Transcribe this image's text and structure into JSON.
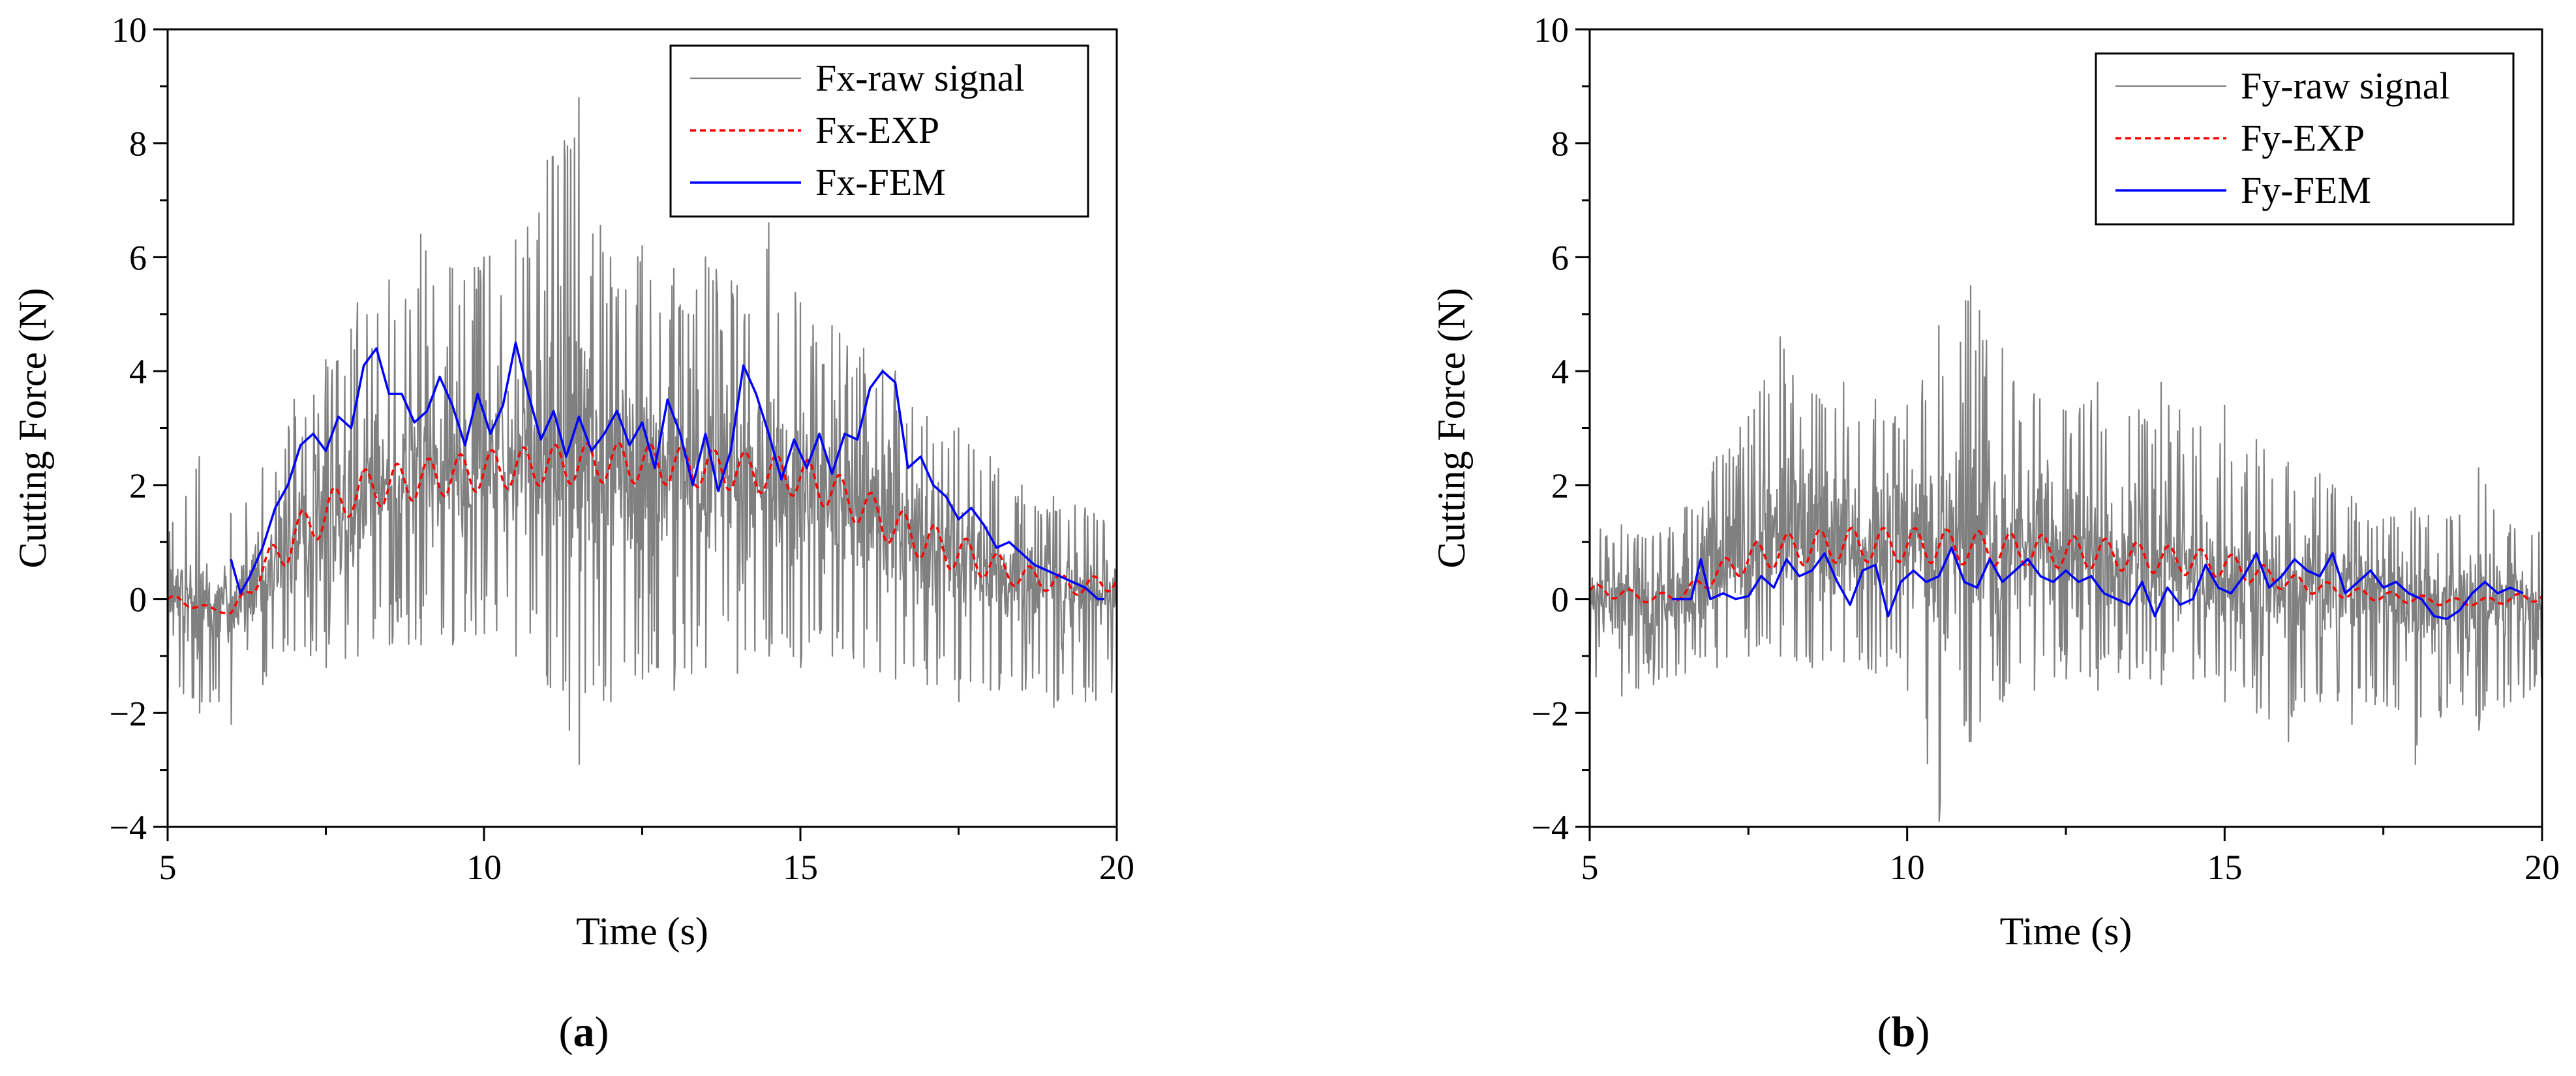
{
  "colors": {
    "raw": "#808080",
    "exp": "#ff0000",
    "fem": "#0000ff",
    "axis": "#000000"
  },
  "chart_data": [
    {
      "id": "a",
      "type": "line",
      "panel_label": "a",
      "xlabel": "Time (s)",
      "ylabel": "Cutting Force (N)",
      "xlim": [
        5,
        20
      ],
      "ylim": [
        -4,
        10
      ],
      "xticks": [
        5,
        10,
        15,
        20
      ],
      "yticks": [
        -4,
        -2,
        0,
        2,
        4,
        6,
        8,
        10
      ],
      "xtick_labels": [
        "5",
        "10",
        "15",
        "20"
      ],
      "ytick_labels": [
        "−4",
        "−2",
        "0",
        "2",
        "4",
        "6",
        "8",
        "10"
      ],
      "legend_position": "top-right",
      "legend": [
        {
          "name": "Fx-raw signal",
          "style": "raw"
        },
        {
          "name": "Fx-EXP",
          "style": "exp"
        },
        {
          "name": "Fx-FEM",
          "style": "fem"
        }
      ],
      "series": [
        {
          "name": "Fx-raw signal",
          "style": "raw",
          "envelope": {
            "t": [
              5,
              5.5,
              6,
              6.5,
              7,
              7.5,
              8,
              8.5,
              9,
              9.5,
              10,
              10.5,
              11,
              11.5,
              12,
              12.5,
              13,
              13.5,
              14,
              14.5,
              15,
              15.5,
              16,
              16.5,
              17,
              17.5,
              18,
              18.5,
              19,
              19.5,
              20
            ],
            "mean": [
              0,
              0,
              -0.1,
              0.3,
              0.9,
              1.4,
              1.8,
              2.0,
              2.2,
              2.2,
              2.3,
              2.4,
              2.5,
              2.5,
              2.4,
              2.3,
              2.2,
              2.2,
              2.2,
              2.0,
              1.9,
              1.7,
              1.5,
              1.3,
              1.0,
              0.8,
              0.5,
              0.3,
              0.2,
              0.1,
              0
            ],
            "upper": [
              1.2,
              2.5,
              1.5,
              2.3,
              3.5,
              4.2,
              5.2,
              5.6,
              6.4,
              5.8,
              6.0,
              6.3,
              7.7,
              8.8,
              6.0,
              6.2,
              5.8,
              6.0,
              5.5,
              6.6,
              5.2,
              4.8,
              4.4,
              4.0,
              3.2,
              3.0,
              2.5,
              2.0,
              1.8,
              1.6,
              1.3
            ],
            "lower": [
              -1.8,
              -2.0,
              -2.2,
              -1.5,
              -0.9,
              -1.2,
              -1.0,
              -0.8,
              -0.8,
              -0.8,
              -0.6,
              -1.0,
              -1.5,
              -2.9,
              -1.8,
              -1.4,
              -1.6,
              -1.2,
              -1.3,
              -1.0,
              -1.2,
              -1.0,
              -1.2,
              -1.4,
              -1.5,
              -1.8,
              -1.6,
              -1.6,
              -1.9,
              -1.8,
              -1.8
            ]
          }
        },
        {
          "name": "Fx-EXP",
          "style": "exp",
          "base": {
            "t": [
              5,
              6,
              6.5,
              7,
              7.5,
              8,
              9,
              10,
              11,
              12,
              13,
              14,
              15,
              15.5,
              16,
              16.5,
              17,
              17.5,
              18,
              18.5,
              19,
              19.5,
              20
            ],
            "y": [
              0,
              -0.25,
              0.5,
              1.1,
              1.5,
              1.9,
              2.1,
              2.25,
              2.35,
              2.4,
              2.35,
              2.25,
              2.15,
              1.9,
              1.6,
              1.25,
              1.0,
              0.8,
              0.6,
              0.4,
              0.3,
              0.2,
              0.35
            ]
          },
          "ripple_amplitude": 0.35,
          "ripple_period_s": 0.5
        },
        {
          "name": "Fx-FEM",
          "style": "fem",
          "t": [
            6.0,
            6.15,
            6.3,
            6.5,
            6.7,
            6.9,
            7.1,
            7.3,
            7.5,
            7.7,
            7.9,
            8.1,
            8.3,
            8.5,
            8.7,
            8.9,
            9.1,
            9.3,
            9.5,
            9.7,
            9.9,
            10.1,
            10.3,
            10.5,
            10.7,
            10.9,
            11.1,
            11.3,
            11.5,
            11.7,
            11.9,
            12.1,
            12.3,
            12.5,
            12.7,
            12.9,
            13.1,
            13.3,
            13.5,
            13.7,
            13.9,
            14.1,
            14.3,
            14.5,
            14.7,
            14.9,
            15.1,
            15.3,
            15.5,
            15.7,
            15.9,
            16.1,
            16.3,
            16.5,
            16.7,
            16.9,
            17.1,
            17.3,
            17.5,
            17.7,
            17.9,
            18.1,
            18.3,
            18.5,
            18.7,
            18.9,
            19.1,
            19.3,
            19.5,
            19.7,
            19.8
          ],
          "y": [
            0.7,
            0.1,
            0.4,
            0.9,
            1.6,
            2.0,
            2.7,
            2.9,
            2.6,
            3.2,
            3.0,
            4.1,
            4.4,
            3.6,
            3.6,
            3.1,
            3.3,
            3.9,
            3.4,
            2.7,
            3.6,
            2.9,
            3.4,
            4.5,
            3.6,
            2.8,
            3.3,
            2.5,
            3.2,
            2.6,
            2.9,
            3.3,
            2.7,
            3.1,
            2.3,
            3.5,
            2.9,
            2.0,
            2.9,
            1.9,
            2.6,
            4.1,
            3.6,
            2.9,
            2.1,
            2.8,
            2.3,
            2.9,
            2.2,
            2.9,
            2.8,
            3.7,
            4.0,
            3.8,
            2.3,
            2.5,
            2.0,
            1.8,
            1.4,
            1.6,
            1.3,
            0.9,
            1.0,
            0.8,
            0.6,
            0.5,
            0.4,
            0.3,
            0.2,
            0.0,
            0.0
          ]
        }
      ]
    },
    {
      "id": "b",
      "type": "line",
      "panel_label": "b",
      "xlabel": "Time (s)",
      "ylabel": "Cutting Force (N)",
      "xlim": [
        5,
        20
      ],
      "ylim": [
        -4,
        10
      ],
      "xticks": [
        5,
        10,
        15,
        20
      ],
      "yticks": [
        -4,
        -2,
        0,
        2,
        4,
        6,
        8,
        10
      ],
      "xtick_labels": [
        "5",
        "10",
        "15",
        "20"
      ],
      "ytick_labels": [
        "−4",
        "−2",
        "0",
        "2",
        "4",
        "6",
        "8",
        "10"
      ],
      "legend_position": "top-right",
      "legend": [
        {
          "name": "Fy-raw signal",
          "style": "raw"
        },
        {
          "name": "Fy-EXP",
          "style": "exp"
        },
        {
          "name": "Fy-FEM",
          "style": "fem"
        }
      ],
      "series": [
        {
          "name": "Fy-raw signal",
          "style": "raw",
          "envelope": {
            "t": [
              5,
              5.5,
              6,
              6.5,
              7,
              7.5,
              8,
              8.5,
              9,
              9.5,
              10,
              10.5,
              11,
              11.5,
              12,
              12.5,
              13,
              13.5,
              14,
              14.5,
              15,
              15.5,
              16,
              16.5,
              17,
              17.5,
              18,
              18.5,
              19,
              19.5,
              20
            ],
            "mean": [
              0,
              0,
              0,
              0.1,
              0.4,
              0.7,
              0.9,
              1.0,
              1.0,
              1.0,
              0.9,
              0.9,
              0.9,
              0.8,
              0.8,
              0.8,
              0.7,
              0.6,
              0.5,
              0.5,
              0.4,
              0.3,
              0.3,
              0.2,
              0.2,
              0.1,
              0.1,
              0.0,
              0.0,
              0.0,
              0.0
            ],
            "upper": [
              1.2,
              1.3,
              1.1,
              1.6,
              2.5,
              3.2,
              4.6,
              3.6,
              3.8,
              3.5,
              3.4,
              4.8,
              5.5,
              4.4,
              3.6,
              3.3,
              3.8,
              3.2,
              3.8,
              3.0,
              3.4,
              2.8,
              2.4,
              2.2,
              1.8,
              1.4,
              1.6,
              1.4,
              2.3,
              1.3,
              1.2
            ],
            "lower": [
              -1.4,
              -1.7,
              -1.5,
              -1.3,
              -1.2,
              -1.0,
              -1.0,
              -1.2,
              -1.1,
              -1.3,
              -1.6,
              -3.9,
              -2.5,
              -1.8,
              -1.6,
              -1.4,
              -1.6,
              -1.4,
              -1.5,
              -1.4,
              -1.8,
              -2.0,
              -2.5,
              -1.8,
              -2.2,
              -1.8,
              -2.9,
              -1.9,
              -2.3,
              -1.8,
              -1.7
            ]
          }
        },
        {
          "name": "Fy-EXP",
          "style": "exp",
          "base": {
            "t": [
              5,
              5.5,
              6,
              6.5,
              7,
              7.5,
              8,
              9,
              10,
              11,
              12,
              13,
              14,
              15,
              15.5,
              16,
              16.5,
              17,
              17.5,
              18,
              18.5,
              19,
              19.5,
              20
            ],
            "y": [
              0.15,
              0.1,
              0.0,
              0.1,
              0.45,
              0.7,
              0.85,
              0.95,
              0.95,
              0.9,
              0.85,
              0.8,
              0.7,
              0.6,
              0.45,
              0.3,
              0.2,
              0.1,
              0.05,
              0.0,
              -0.05,
              -0.05,
              0.0,
              0.05
            ]
          },
          "ripple_amplitude": 0.3,
          "ripple_period_s": 0.5
        },
        {
          "name": "Fy-FEM",
          "style": "fem",
          "t": [
            6.3,
            6.6,
            6.75,
            6.9,
            7.1,
            7.3,
            7.5,
            7.7,
            7.9,
            8.1,
            8.3,
            8.5,
            8.7,
            8.9,
            9.1,
            9.3,
            9.5,
            9.7,
            9.9,
            10.1,
            10.3,
            10.5,
            10.7,
            10.9,
            11.1,
            11.3,
            11.5,
            11.7,
            11.9,
            12.1,
            12.3,
            12.5,
            12.7,
            12.9,
            13.1,
            13.3,
            13.5,
            13.7,
            13.9,
            14.1,
            14.3,
            14.5,
            14.7,
            14.9,
            15.1,
            15.3,
            15.5,
            15.7,
            15.9,
            16.1,
            16.3,
            16.5,
            16.7,
            16.9,
            17.1,
            17.3,
            17.5,
            17.7,
            17.9,
            18.1,
            18.3,
            18.5,
            18.7,
            18.9,
            19.1,
            19.3,
            19.5,
            19.7
          ],
          "y": [
            0.0,
            0.0,
            0.7,
            0.0,
            0.1,
            0.0,
            0.05,
            0.4,
            0.2,
            0.7,
            0.4,
            0.5,
            0.8,
            0.3,
            -0.1,
            0.5,
            0.6,
            -0.3,
            0.3,
            0.5,
            0.3,
            0.4,
            0.9,
            0.3,
            0.2,
            0.7,
            0.3,
            0.5,
            0.7,
            0.4,
            0.3,
            0.5,
            0.3,
            0.4,
            0.1,
            0.0,
            -0.1,
            0.3,
            -0.3,
            0.2,
            -0.1,
            0.0,
            0.6,
            0.2,
            0.1,
            0.4,
            0.8,
            0.2,
            0.4,
            0.7,
            0.5,
            0.4,
            0.8,
            0.1,
            0.3,
            0.5,
            0.2,
            0.3,
            0.1,
            0.0,
            -0.3,
            -0.35,
            -0.2,
            0.1,
            0.3,
            0.1,
            0.2,
            0.1
          ]
        }
      ]
    }
  ]
}
